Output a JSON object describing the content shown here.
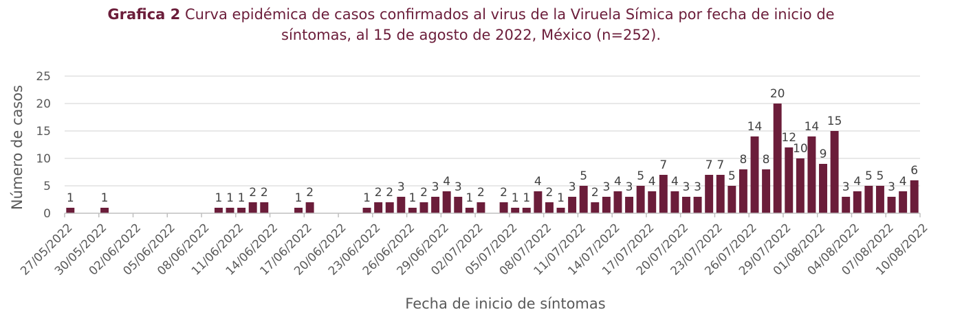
{
  "title": {
    "prefix": "Grafica 2",
    "line1": " Curva epidémica de casos confirmados al virus de la Viruela Símica por fecha de inicio de",
    "line2": "síntomas, al 15 de agosto de 2022, México (n=252)."
  },
  "colors": {
    "bar": "#6b1d3a",
    "grid": "#d9d9d9",
    "axis": "#bfbfbf"
  },
  "chart_data": {
    "type": "bar",
    "xlabel": "Fecha de inicio de síntomas",
    "ylabel": "Número de casos",
    "ylim": [
      0,
      25
    ],
    "yticks": [
      0,
      5,
      10,
      15,
      20,
      25
    ],
    "grid": true,
    "legend": "none",
    "xticks": [
      "27/05/2022",
      "30/05/2022",
      "02/06/2022",
      "05/06/2022",
      "08/06/2022",
      "11/06/2022",
      "14/06/2022",
      "17/06/2022",
      "20/06/2022",
      "23/06/2022",
      "26/06/2022",
      "29/06/2022",
      "02/07/2022",
      "05/07/2022",
      "08/07/2022",
      "11/07/2022",
      "14/07/2022",
      "17/07/2022",
      "20/07/2022",
      "23/07/2022",
      "26/07/2022",
      "29/07/2022",
      "01/08/2022",
      "04/08/2022",
      "07/08/2022",
      "10/08/2022"
    ],
    "bars": [
      {
        "x": "27/05/2022",
        "y": 1
      },
      {
        "x": "30/05/2022",
        "y": 1
      },
      {
        "x": "09/06/2022",
        "y": 1
      },
      {
        "x": "10/06/2022",
        "y": 1
      },
      {
        "x": "11/06/2022",
        "y": 1
      },
      {
        "x": "12/06/2022",
        "y": 2
      },
      {
        "x": "13/06/2022",
        "y": 2
      },
      {
        "x": "16/06/2022",
        "y": 1
      },
      {
        "x": "17/06/2022",
        "y": 2
      },
      {
        "x": "22/06/2022",
        "y": 1
      },
      {
        "x": "23/06/2022",
        "y": 2
      },
      {
        "x": "24/06/2022",
        "y": 2
      },
      {
        "x": "25/06/2022",
        "y": 3
      },
      {
        "x": "26/06/2022",
        "y": 1
      },
      {
        "x": "27/06/2022",
        "y": 2
      },
      {
        "x": "28/06/2022",
        "y": 3
      },
      {
        "x": "29/06/2022",
        "y": 4
      },
      {
        "x": "30/06/2022",
        "y": 3
      },
      {
        "x": "01/07/2022",
        "y": 1
      },
      {
        "x": "02/07/2022",
        "y": 2
      },
      {
        "x": "04/07/2022",
        "y": 2
      },
      {
        "x": "05/07/2022",
        "y": 1
      },
      {
        "x": "06/07/2022",
        "y": 1
      },
      {
        "x": "07/07/2022",
        "y": 4
      },
      {
        "x": "08/07/2022",
        "y": 2
      },
      {
        "x": "09/07/2022",
        "y": 1
      },
      {
        "x": "10/07/2022",
        "y": 3
      },
      {
        "x": "11/07/2022",
        "y": 5
      },
      {
        "x": "12/07/2022",
        "y": 2
      },
      {
        "x": "13/07/2022",
        "y": 3
      },
      {
        "x": "14/07/2022",
        "y": 4
      },
      {
        "x": "15/07/2022",
        "y": 3
      },
      {
        "x": "16/07/2022",
        "y": 5
      },
      {
        "x": "17/07/2022",
        "y": 4
      },
      {
        "x": "18/07/2022",
        "y": 7
      },
      {
        "x": "19/07/2022",
        "y": 4
      },
      {
        "x": "20/07/2022",
        "y": 3
      },
      {
        "x": "21/07/2022",
        "y": 3
      },
      {
        "x": "22/07/2022",
        "y": 7
      },
      {
        "x": "23/07/2022",
        "y": 7
      },
      {
        "x": "24/07/2022",
        "y": 5
      },
      {
        "x": "25/07/2022",
        "y": 8
      },
      {
        "x": "26/07/2022",
        "y": 14
      },
      {
        "x": "27/07/2022",
        "y": 8
      },
      {
        "x": "28/07/2022",
        "y": 20
      },
      {
        "x": "29/07/2022",
        "y": 12
      },
      {
        "x": "30/07/2022",
        "y": 10
      },
      {
        "x": "31/07/2022",
        "y": 14
      },
      {
        "x": "01/08/2022",
        "y": 9
      },
      {
        "x": "02/08/2022",
        "y": 15
      },
      {
        "x": "03/08/2022",
        "y": 3
      },
      {
        "x": "04/08/2022",
        "y": 4
      },
      {
        "x": "05/08/2022",
        "y": 5
      },
      {
        "x": "06/08/2022",
        "y": 5
      },
      {
        "x": "07/08/2022",
        "y": 3
      },
      {
        "x": "08/08/2022",
        "y": 4
      },
      {
        "x": "09/08/2022",
        "y": 6
      }
    ]
  }
}
